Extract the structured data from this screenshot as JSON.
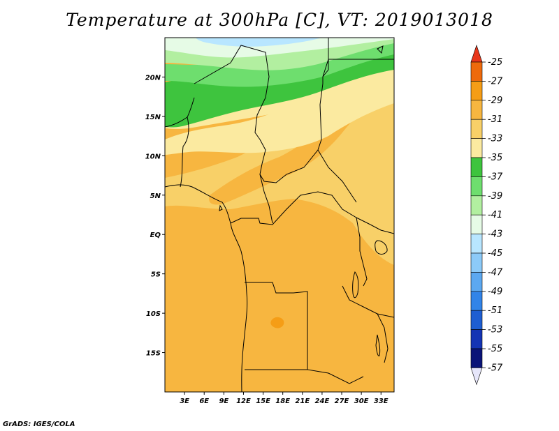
{
  "title": "Temperature at 300hPa [C], VT: 2019013018",
  "credit": "GrADS: IGES/COLA",
  "map": {
    "lat_range": [
      -20,
      25
    ],
    "lon_range": [
      0,
      35
    ],
    "lat_ticks": [
      {
        "value": 20,
        "label": "20N"
      },
      {
        "value": 15,
        "label": "15N"
      },
      {
        "value": 10,
        "label": "10N"
      },
      {
        "value": 5,
        "label": "5N"
      },
      {
        "value": 0,
        "label": "EQ"
      },
      {
        "value": -5,
        "label": "5S"
      },
      {
        "value": -10,
        "label": "10S"
      },
      {
        "value": -15,
        "label": "15S"
      }
    ],
    "lon_ticks": [
      {
        "value": 3,
        "label": "3E"
      },
      {
        "value": 6,
        "label": "6E"
      },
      {
        "value": 9,
        "label": "9E"
      },
      {
        "value": 12,
        "label": "12E"
      },
      {
        "value": 15,
        "label": "15E"
      },
      {
        "value": 18,
        "label": "18E"
      },
      {
        "value": 21,
        "label": "21E"
      },
      {
        "value": 24,
        "label": "24E"
      },
      {
        "value": 27,
        "label": "27E"
      },
      {
        "value": 30,
        "label": "30E"
      },
      {
        "value": 33,
        "label": "33E"
      }
    ]
  },
  "colorbar": {
    "labels": [
      "-25",
      "-27",
      "-29",
      "-31",
      "-33",
      "-35",
      "-37",
      "-39",
      "-41",
      "-43",
      "-45",
      "-47",
      "-49",
      "-51",
      "-53",
      "-55",
      "-57"
    ],
    "colors": [
      "#e8361a",
      "#ee6a0c",
      "#f59d16",
      "#f7b640",
      "#f8d068",
      "#fbeaa0",
      "#3ec43e",
      "#6ede6e",
      "#b2efa0",
      "#e6fbe6",
      "#b8e6ff",
      "#8ccaf8",
      "#5ca8f0",
      "#3284e8",
      "#1e5ed2",
      "#1434b4",
      "#0a1478",
      "#e6e6fa"
    ]
  }
}
